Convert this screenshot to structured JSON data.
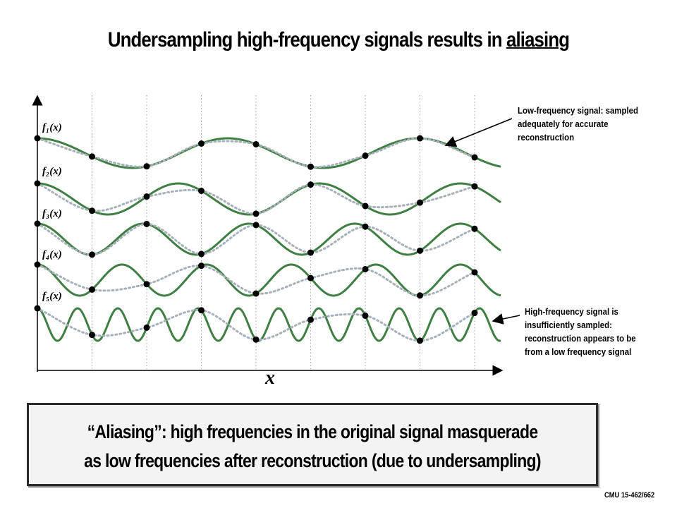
{
  "title": {
    "prefix": "Undersampling high-frequency signals results in ",
    "underlined": "aliasing"
  },
  "function_labels": [
    "f₁(x)",
    "f₂(x)",
    "f₃(x)",
    "f₄(x)",
    "f₅(x)"
  ],
  "x_axis_label": "x",
  "annotation_low": {
    "line1": "Low-frequency signal: sampled",
    "line2": "adequately for accurate",
    "line3": "reconstruction"
  },
  "annotation_high": {
    "line1": "High-frequency signal is",
    "line2": "insufficiently sampled:",
    "line3": "reconstruction appears to be",
    "line4": "from a low frequency signal"
  },
  "callout": {
    "line1": "“Aliasing”: high frequencies in the original signal masquerade",
    "line2": "as low frequencies after reconstruction (due to undersampling)"
  },
  "footer": "CMU 15-462/662",
  "colors": {
    "signal": "#3f7f44",
    "reconstruction": "#a7b1b9",
    "sample": "#000000",
    "grid": "#9aa0a6"
  }
}
